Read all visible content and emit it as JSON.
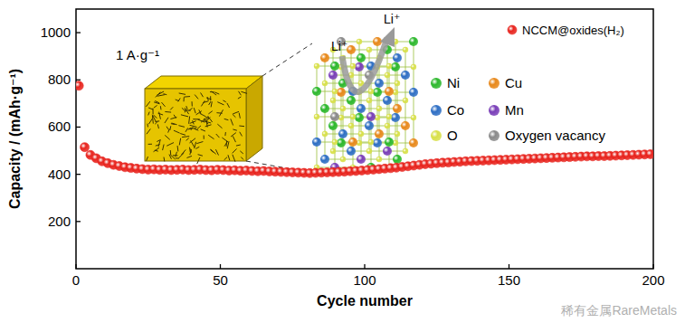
{
  "chart_data": {
    "type": "scatter",
    "x_label": "Cycle number",
    "y_label": "Capacity / (mAh·g⁻¹)",
    "annotations": [
      "1 A·g⁻¹",
      "Li⁺",
      "Li⁺",
      "Ni",
      "Cu",
      "Co",
      "Mn",
      "O",
      "Oxygen vacancy",
      "稀有金属RareMetals"
    ],
    "x": [
      1,
      3,
      5,
      7,
      9,
      11,
      13,
      15,
      17,
      19,
      21,
      23,
      25,
      27,
      29,
      31,
      33,
      35,
      37,
      39,
      41,
      43,
      45,
      47,
      49,
      51,
      53,
      55,
      57,
      59,
      61,
      63,
      65,
      67,
      69,
      71,
      73,
      75,
      77,
      79,
      81,
      83,
      85,
      87,
      89,
      91,
      93,
      95,
      97,
      99,
      101,
      103,
      105,
      107,
      109,
      111,
      113,
      115,
      117,
      119,
      121,
      123,
      125,
      127,
      129,
      131,
      133,
      135,
      137,
      139,
      141,
      143,
      145,
      147,
      149,
      151,
      153,
      155,
      157,
      159,
      161,
      163,
      165,
      167,
      169,
      171,
      173,
      175,
      177,
      179,
      181,
      183,
      185,
      187,
      189,
      191,
      193,
      195,
      197,
      199
    ],
    "series": [
      {
        "name": "NCCM@oxides(H₂)",
        "color": "#e8251f",
        "marker": "circle",
        "values": [
          775,
          515,
          482,
          468,
          455,
          447,
          440,
          435,
          430,
          427,
          424,
          422,
          420,
          421,
          419,
          420,
          418,
          419,
          420,
          418,
          419,
          420,
          418,
          417,
          419,
          418,
          416,
          417,
          415,
          416,
          414,
          413,
          414,
          412,
          411,
          410,
          409,
          408,
          407,
          406,
          405,
          406,
          407,
          408,
          409,
          410,
          411,
          413,
          414,
          416,
          418,
          420,
          422,
          424,
          426,
          428,
          431,
          434,
          437,
          440,
          443,
          445,
          447,
          449,
          450,
          452,
          453,
          455,
          456,
          457,
          458,
          459,
          460,
          461,
          462,
          463,
          464,
          465,
          466,
          467,
          468,
          469,
          470,
          471,
          472,
          473,
          474,
          475,
          476,
          476,
          477,
          477,
          478,
          479,
          480,
          481,
          482,
          483,
          484,
          485
        ]
      }
    ],
    "xlim": [
      0,
      200
    ],
    "xticks": [
      0,
      50,
      100,
      150,
      200
    ],
    "ylim": [
      0,
      1100
    ],
    "yticks": [
      200,
      400,
      600,
      800,
      1000
    ],
    "grid": false,
    "legend": "top-right"
  }
}
